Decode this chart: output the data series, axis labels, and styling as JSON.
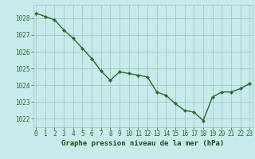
{
  "x": [
    0,
    1,
    2,
    3,
    4,
    5,
    6,
    7,
    8,
    9,
    10,
    11,
    12,
    13,
    14,
    15,
    16,
    17,
    18,
    19,
    20,
    21,
    22,
    23
  ],
  "y": [
    1028.3,
    1028.1,
    1027.9,
    1027.3,
    1026.8,
    1026.2,
    1025.6,
    1024.85,
    1024.3,
    1024.8,
    1024.7,
    1024.6,
    1024.5,
    1023.6,
    1023.4,
    1022.9,
    1022.5,
    1022.4,
    1021.9,
    1023.3,
    1023.6,
    1023.6,
    1023.8,
    1024.1
  ],
  "line_color": "#2d6a2d",
  "marker": "D",
  "marker_size": 2.2,
  "bg_color": "#c8eaea",
  "grid_color": "#9bbfbf",
  "xlabel": "Graphe pression niveau de la mer (hPa)",
  "xlabel_color": "#1a4d1a",
  "tick_color": "#2d6a2d",
  "ylim": [
    1021.5,
    1028.8
  ],
  "yticks": [
    1022,
    1023,
    1024,
    1025,
    1026,
    1027,
    1028
  ],
  "xlim": [
    -0.3,
    23.3
  ],
  "xticks": [
    0,
    1,
    2,
    3,
    4,
    5,
    6,
    7,
    8,
    9,
    10,
    11,
    12,
    13,
    14,
    15,
    16,
    17,
    18,
    19,
    20,
    21,
    22,
    23
  ],
  "line_width": 1.0,
  "xlabel_fontsize": 6.5,
  "tick_fontsize": 5.5
}
